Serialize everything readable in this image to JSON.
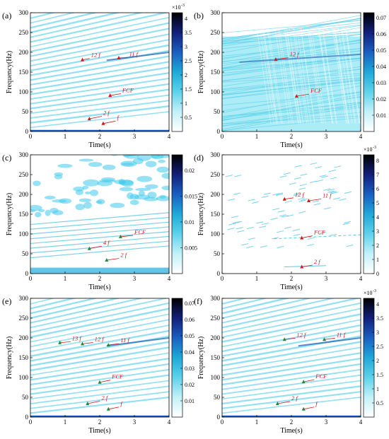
{
  "figure": {
    "colors": {
      "background": "#ffffff",
      "field": "#8fe6f3",
      "ridge": "#4fc6e6",
      "band": "#1f5fb5",
      "axis": "#000000",
      "annotation_text": "#d4171c",
      "annotation_marker": "#d4171c",
      "annotation_marker_alt": "#1f8a3c"
    },
    "colormap": [
      "#ffffff",
      "#c2f1f8",
      "#5fd2eb",
      "#1fa9d8",
      "#1a5fc0",
      "#12207a",
      "#000000"
    ],
    "panels": [
      {
        "label": "(a)",
        "marker_color": "red",
        "texture": "lines",
        "colorbar": {
          "exponent": "×10",
          "exponent_power": "-3",
          "min": 0,
          "max": 4.2,
          "ticks": [
            0.5,
            1,
            1.5,
            2,
            2.5,
            3,
            3.5,
            4
          ],
          "tick_labels": [
            "0.5",
            "1",
            "1.5",
            "2",
            "2.5",
            "3",
            "3.5",
            "4"
          ]
        },
        "annotations": [
          {
            "text": "12 f",
            "x": 1.5,
            "y": 181,
            "tx": 1.75,
            "ty": 188
          },
          {
            "text": "11 f",
            "x": 2.55,
            "y": 186,
            "tx": 2.85,
            "ty": 190
          },
          {
            "text": "FCF",
            "x": 2.3,
            "y": 91,
            "tx": 2.65,
            "ty": 99
          },
          {
            "text": "2 f",
            "x": 1.7,
            "y": 32,
            "tx": 2.1,
            "ty": 42
          },
          {
            "text": "f",
            "x": 2.1,
            "y": 20,
            "tx": 2.5,
            "ty": 30
          }
        ]
      },
      {
        "label": "(b)",
        "marker_color": "red",
        "texture": "dense",
        "colorbar": {
          "exponent": "",
          "exponent_power": "",
          "min": 0,
          "max": 0.073,
          "ticks": [
            0.01,
            0.02,
            0.03,
            0.04,
            0.05,
            0.06,
            0.07
          ],
          "tick_labels": [
            "0.01",
            "0.02",
            "0.03",
            "0.04",
            "0.05",
            "0.06",
            "0.07"
          ]
        },
        "annotations": [
          {
            "text": "12 f",
            "x": 1.55,
            "y": 182,
            "tx": 1.95,
            "ty": 190
          },
          {
            "text": "FCF",
            "x": 2.15,
            "y": 89,
            "tx": 2.55,
            "ty": 98
          }
        ]
      },
      {
        "label": "(c)",
        "marker_color": "green",
        "texture": "blobs",
        "colorbar": {
          "exponent": "",
          "exponent_power": "",
          "min": 0,
          "max": 0.023,
          "ticks": [
            0.005,
            0.01,
            0.015,
            0.02
          ],
          "tick_labels": [
            "0.005",
            "0.01",
            "0.015",
            "0.02"
          ]
        },
        "annotations": [
          {
            "text": "FCF",
            "x": 2.6,
            "y": 93,
            "tx": 3.0,
            "ty": 100
          },
          {
            "text": "4 f",
            "x": 1.7,
            "y": 63,
            "tx": 2.1,
            "ty": 73
          },
          {
            "text": "2 f",
            "x": 2.2,
            "y": 34,
            "tx": 2.6,
            "ty": 42
          }
        ]
      },
      {
        "label": "(d)",
        "marker_color": "red",
        "texture": "sparse",
        "colorbar": {
          "exponent": "×10",
          "exponent_power": "-3",
          "min": 0,
          "max": 8.4,
          "ticks": [
            0,
            1,
            2,
            3,
            4,
            5,
            6,
            7,
            8
          ],
          "tick_labels": [
            "0",
            "1",
            "2",
            "3",
            "4",
            "5",
            "6",
            "7",
            "8"
          ]
        },
        "annotations": [
          {
            "text": "12 f",
            "x": 1.8,
            "y": 188,
            "tx": 2.1,
            "ty": 195
          },
          {
            "text": "11 f",
            "x": 2.5,
            "y": 184,
            "tx": 2.9,
            "ty": 192
          },
          {
            "text": "FCF",
            "x": 2.3,
            "y": 90,
            "tx": 2.65,
            "ty": 99
          },
          {
            "text": "2 f",
            "x": 2.3,
            "y": 17,
            "tx": 2.65,
            "ty": 25
          }
        ]
      },
      {
        "label": "(e)",
        "marker_color": "green",
        "texture": "lines",
        "colorbar": {
          "exponent": "",
          "exponent_power": "",
          "min": 0,
          "max": 0.073,
          "ticks": [
            0.01,
            0.02,
            0.03,
            0.04,
            0.05,
            0.06,
            0.07
          ],
          "tick_labels": [
            "0.01",
            "0.02",
            "0.03",
            "0.04",
            "0.05",
            "0.06",
            "0.07"
          ]
        },
        "annotations": [
          {
            "text": "13 f",
            "x": 0.85,
            "y": 188,
            "tx": 1.2,
            "ty": 194
          },
          {
            "text": "12 f",
            "x": 1.5,
            "y": 185,
            "tx": 1.85,
            "ty": 192
          },
          {
            "text": "11 f",
            "x": 2.25,
            "y": 182,
            "tx": 2.6,
            "ty": 189
          },
          {
            "text": "FCF",
            "x": 2.0,
            "y": 88,
            "tx": 2.35,
            "ty": 97
          },
          {
            "text": "2 f",
            "x": 1.65,
            "y": 34,
            "tx": 2.05,
            "ty": 44
          },
          {
            "text": "f",
            "x": 2.25,
            "y": 20,
            "tx": 2.6,
            "ty": 29
          }
        ]
      },
      {
        "label": "(f)",
        "marker_color": "green",
        "texture": "lines",
        "colorbar": {
          "exponent": "×10",
          "exponent_power": "-3",
          "min": 0,
          "max": 4.2,
          "ticks": [
            0.5,
            1,
            1.5,
            2,
            2.5,
            3,
            3.5,
            4
          ],
          "tick_labels": [
            "0.5",
            "1",
            "1.5",
            "2",
            "2.5",
            "3",
            "3.5",
            "4"
          ]
        },
        "annotations": [
          {
            "text": "12 f",
            "x": 1.8,
            "y": 196,
            "tx": 2.15,
            "ty": 203
          },
          {
            "text": "11 f",
            "x": 2.95,
            "y": 196,
            "tx": 3.3,
            "ty": 203
          },
          {
            "text": "FCF",
            "x": 2.35,
            "y": 89,
            "tx": 2.7,
            "ty": 98
          },
          {
            "text": "2 f",
            "x": 1.6,
            "y": 34,
            "tx": 2.0,
            "ty": 43
          },
          {
            "text": "f",
            "x": 2.35,
            "y": 20,
            "tx": 2.7,
            "ty": 29
          }
        ]
      }
    ]
  },
  "chart_data": [
    {
      "type": "heatmap",
      "label": "(a)",
      "xlabel": "Time(s)",
      "ylabel": "Frequency(Hz)",
      "xlim": [
        0,
        4
      ],
      "ylim": [
        0,
        300
      ],
      "xticks": [
        0,
        1,
        2,
        3,
        4
      ],
      "yticks": [
        0,
        50,
        100,
        150,
        200,
        250,
        300
      ],
      "colorbar_range": [
        0,
        0.0042
      ],
      "colorbar_scale": "×10^-3",
      "annotations": [
        "12 f",
        "11 f",
        "FCF",
        "2 f",
        "f"
      ]
    },
    {
      "type": "heatmap",
      "label": "(b)",
      "xlabel": "Time(s)",
      "ylabel": "Frequency(Hz)",
      "xlim": [
        0,
        4
      ],
      "ylim": [
        0,
        300
      ],
      "xticks": [
        0,
        1,
        2,
        3,
        4
      ],
      "yticks": [
        0,
        50,
        100,
        150,
        200,
        250,
        300
      ],
      "colorbar_range": [
        0,
        0.073
      ],
      "annotations": [
        "12 f",
        "FCF"
      ]
    },
    {
      "type": "heatmap",
      "label": "(c)",
      "xlabel": "Time(s)",
      "ylabel": "Frequency(Hz)",
      "xlim": [
        0,
        4
      ],
      "ylim": [
        0,
        300
      ],
      "xticks": [
        0,
        1,
        2,
        3,
        4
      ],
      "yticks": [
        0,
        50,
        100,
        150,
        200,
        250,
        300
      ],
      "colorbar_range": [
        0,
        0.023
      ],
      "annotations": [
        "FCF",
        "4 f",
        "2 f"
      ]
    },
    {
      "type": "heatmap",
      "label": "(d)",
      "xlabel": "Time(s)",
      "ylabel": "Frequency(Hz)",
      "xlim": [
        0,
        4
      ],
      "ylim": [
        0,
        300
      ],
      "xticks": [
        0,
        1,
        2,
        3,
        4
      ],
      "yticks": [
        0,
        50,
        100,
        150,
        200,
        250,
        300
      ],
      "colorbar_range": [
        0,
        0.0084
      ],
      "colorbar_scale": "×10^-3",
      "annotations": [
        "12 f",
        "11 f",
        "FCF",
        "2 f"
      ]
    },
    {
      "type": "heatmap",
      "label": "(e)",
      "xlabel": "Time(s)",
      "ylabel": "Frequency(Hz)",
      "xlim": [
        0,
        4
      ],
      "ylim": [
        0,
        300
      ],
      "xticks": [
        0,
        1,
        2,
        3,
        4
      ],
      "yticks": [
        0,
        50,
        100,
        150,
        200,
        250,
        300
      ],
      "colorbar_range": [
        0,
        0.073
      ],
      "annotations": [
        "13 f",
        "12 f",
        "11 f",
        "FCF",
        "2 f",
        "f"
      ]
    },
    {
      "type": "heatmap",
      "label": "(f)",
      "xlabel": "Time(s)",
      "ylabel": "Frequency(Hz)",
      "xlim": [
        0,
        4
      ],
      "ylim": [
        0,
        300
      ],
      "xticks": [
        0,
        1,
        2,
        3,
        4
      ],
      "yticks": [
        0,
        50,
        100,
        150,
        200,
        250,
        300
      ],
      "colorbar_range": [
        0,
        0.0042
      ],
      "colorbar_scale": "×10^-3",
      "annotations": [
        "12 f",
        "11 f",
        "FCF",
        "2 f",
        "f"
      ]
    }
  ]
}
